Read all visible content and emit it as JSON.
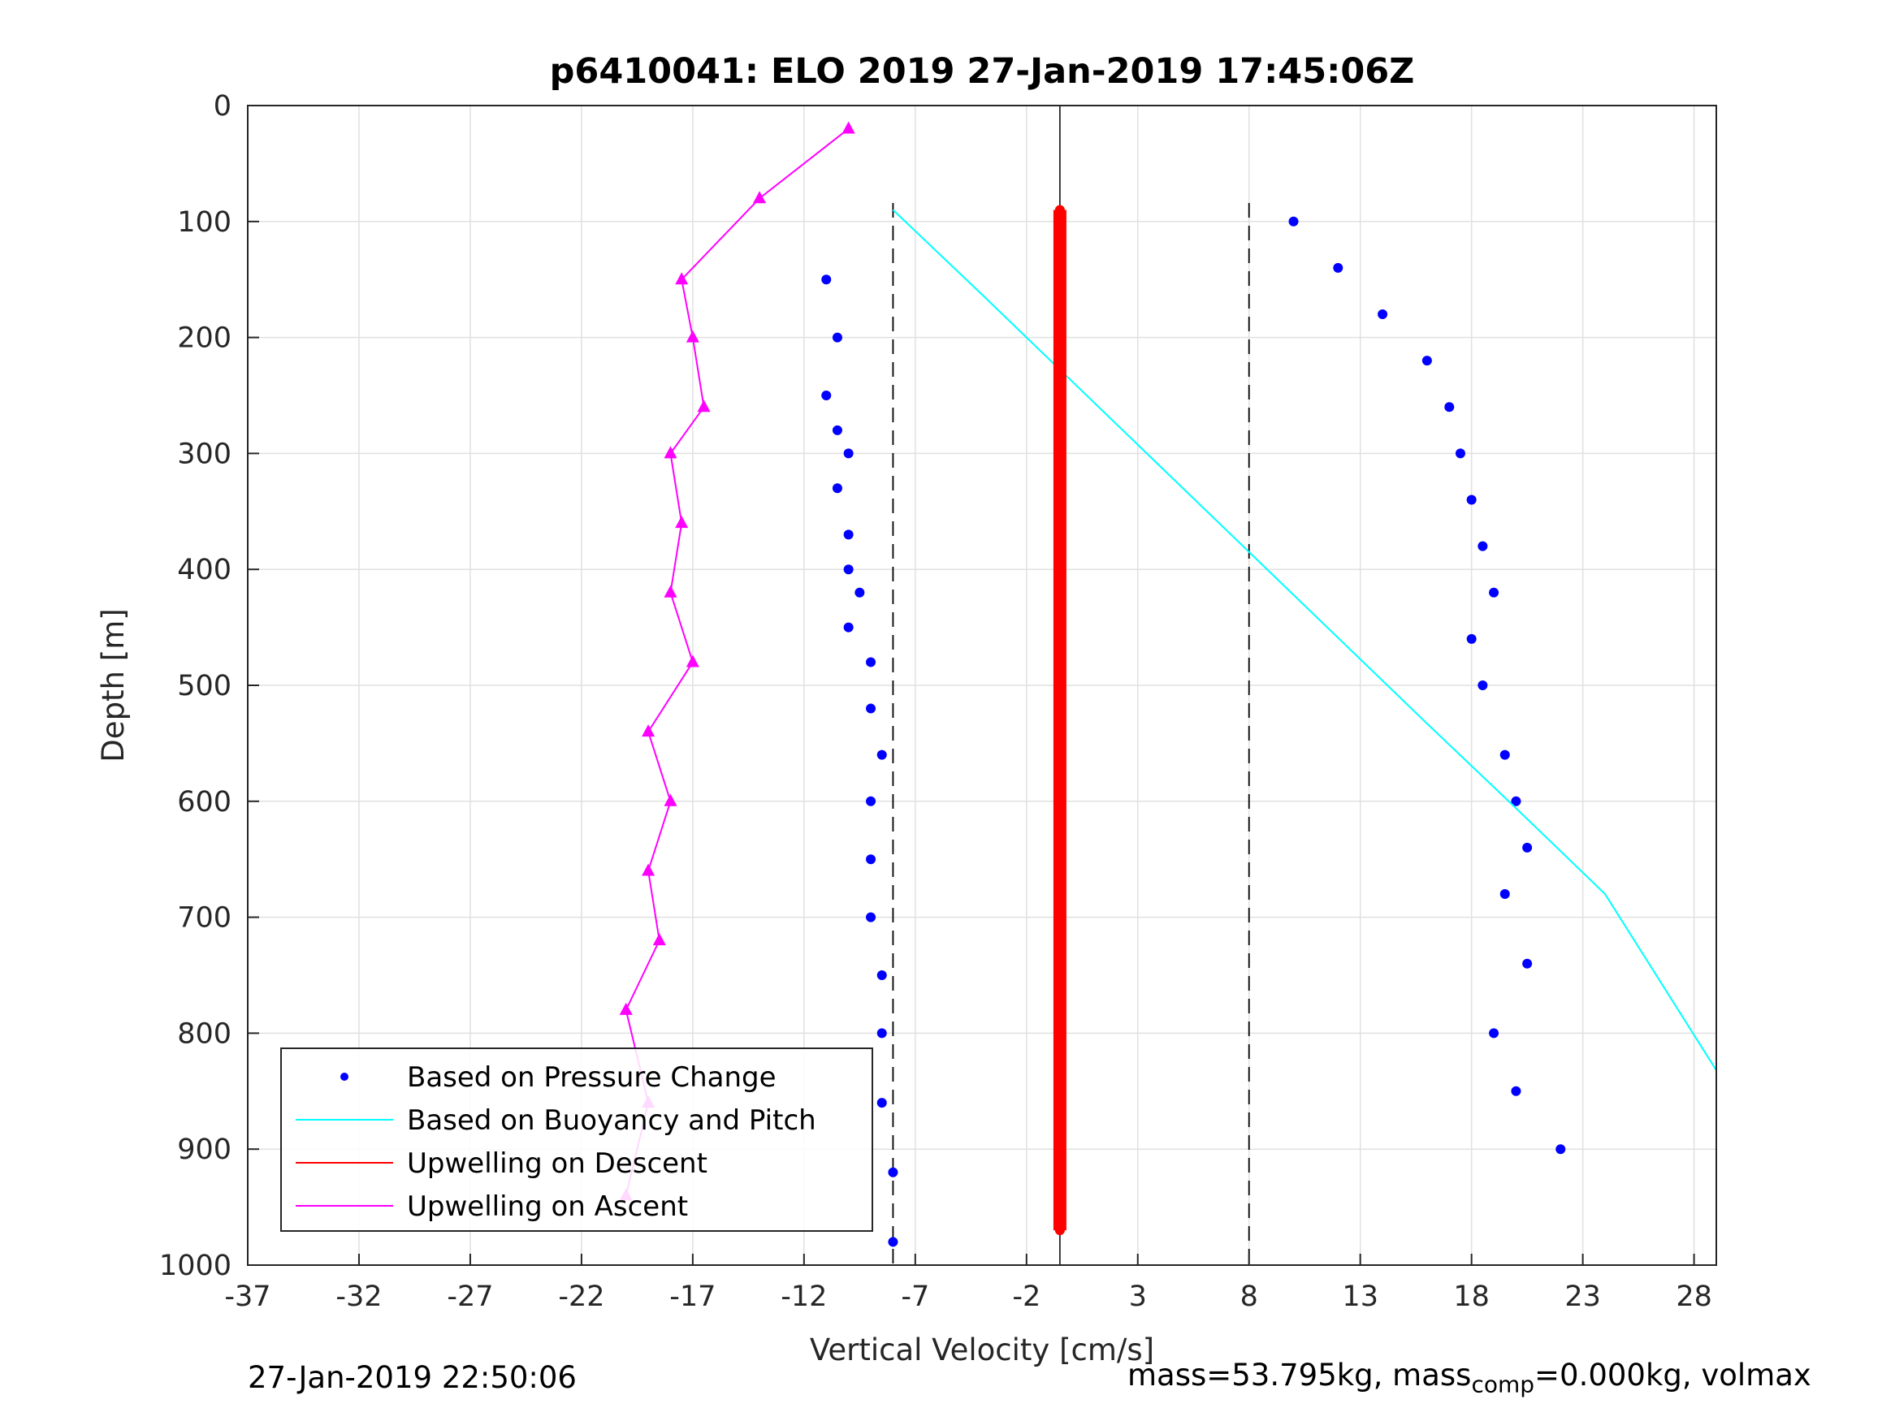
{
  "chart_data": {
    "type": "scatter",
    "title": "p6410041: ELO 2019 27-Jan-2019 17:45:06Z",
    "xlabel": "Vertical Velocity [cm/s]",
    "ylabel": "Depth [m]",
    "xlim": [
      -37,
      29
    ],
    "ylim": [
      0,
      1000
    ],
    "y_reversed": true,
    "grid": true,
    "legend_placement": "bottom-left",
    "xticks": [
      "-37",
      "-32",
      "-27",
      "-22",
      "-17",
      "-12",
      "-7",
      "-2",
      "3",
      "8",
      "13",
      "18",
      "23",
      "28"
    ],
    "yticks": [
      "0",
      "100",
      "200",
      "300",
      "400",
      "500",
      "600",
      "700",
      "800",
      "900",
      "1000"
    ],
    "colors": {
      "pressure": "#0000ff",
      "buoyancy": "#00ffff",
      "descent": "#ff0000",
      "ascent": "#ff00ff",
      "markers": "#000000"
    },
    "legend": [
      {
        "label": "Based on Pressure Change",
        "color": "#0000ff",
        "style": "dot"
      },
      {
        "label": "Based on Buoyancy and Pitch",
        "color": "#00ffff",
        "style": "line"
      },
      {
        "label": "Upwelling on Descent",
        "color": "#ff0000",
        "style": "line"
      },
      {
        "label": "Upwelling on Ascent",
        "color": "#ff00ff",
        "style": "line"
      }
    ],
    "reference_lines": {
      "dashed_x": [
        -8,
        8
      ],
      "center_x": -0.5
    },
    "series": [
      {
        "name": "Based on Pressure Change (descent)",
        "color": "#0000ff",
        "x": [
          -11,
          -10.5,
          -11,
          -10.5,
          -10,
          -10.5,
          -10,
          -10,
          -9.5,
          -10,
          -9,
          -9,
          -8.5,
          -9,
          -9,
          -9,
          -8.5,
          -8.5,
          -8.5,
          -8,
          -8
        ],
        "y": [
          150,
          200,
          250,
          280,
          300,
          330,
          370,
          400,
          420,
          450,
          480,
          520,
          560,
          600,
          650,
          700,
          750,
          800,
          860,
          920,
          980
        ]
      },
      {
        "name": "Based on Pressure Change (ascent)",
        "color": "#0000ff",
        "x": [
          10,
          12,
          14,
          16,
          17,
          17.5,
          18,
          18.5,
          19,
          18,
          18.5,
          19.5,
          20,
          20.5,
          19.5,
          20.5,
          19,
          20,
          22
        ],
        "y": [
          100,
          140,
          180,
          220,
          260,
          300,
          340,
          380,
          420,
          460,
          500,
          560,
          600,
          640,
          680,
          740,
          800,
          850,
          900
        ]
      },
      {
        "name": "Based on Buoyancy and Pitch",
        "color": "#00ffff",
        "x": [
          -8,
          -4,
          0,
          4,
          8,
          12,
          16,
          20,
          24,
          29
        ],
        "y": [
          90,
          163,
          237,
          311,
          385,
          459,
          533,
          606,
          680,
          832
        ]
      },
      {
        "name": "Upwelling on Descent",
        "color": "#ff0000",
        "x": [
          -0.5,
          -0.5,
          -0.5,
          -0.5,
          -0.5
        ],
        "y": [
          90,
          300,
          500,
          700,
          970
        ]
      },
      {
        "name": "Upwelling on Ascent",
        "color": "#ff00ff",
        "x": [
          -10,
          -14,
          -17.5,
          -17,
          -16.5,
          -18,
          -17.5,
          -18,
          -17,
          -19,
          -18,
          -19,
          -18.5,
          -20,
          -19,
          -20
        ],
        "y": [
          20,
          80,
          150,
          200,
          260,
          300,
          360,
          420,
          480,
          540,
          600,
          660,
          720,
          780,
          860,
          940
        ]
      }
    ]
  },
  "footer": {
    "left": "27-Jan-2019 22:50:06",
    "mass": "mass=53.795kg, mass",
    "mass_sub": "comp",
    "volmax": "=0.000kg, volmax"
  }
}
